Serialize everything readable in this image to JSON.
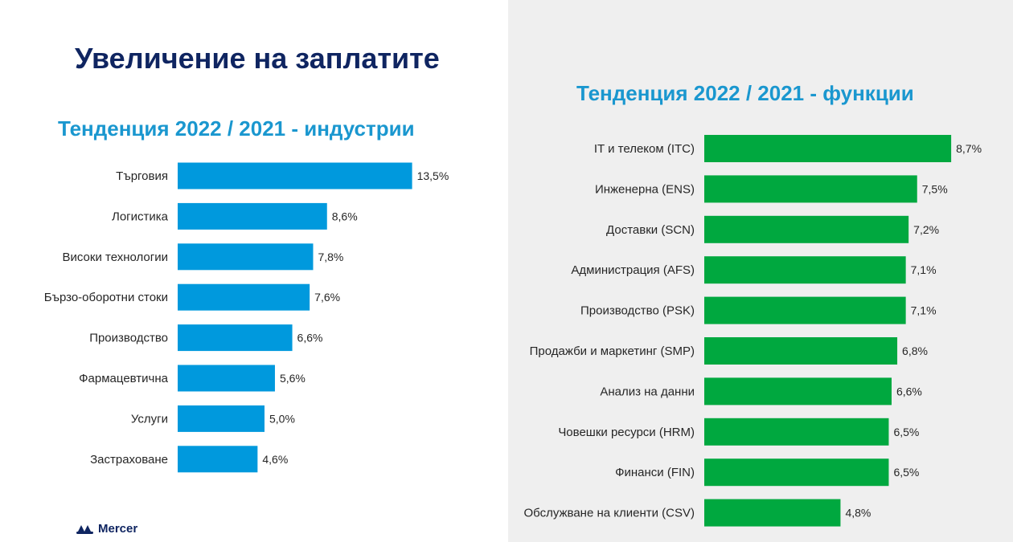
{
  "title": "Увеличение на заплатите",
  "brand": {
    "name": "Mercer",
    "color": "#0f2561"
  },
  "colors": {
    "left_bar": "#0099dd",
    "right_bar": "#00a83f",
    "title": "#0f2561",
    "subtitle": "#1a97cf"
  },
  "chart_data": [
    {
      "type": "bar",
      "orientation": "horizontal",
      "title": "Тенденция 2022 / 2021 - индустрии",
      "categories": [
        "Търговия",
        "Логистика",
        "Високи технологии",
        "Бързо-оборотни стоки",
        "Производство",
        "Фармацевтична",
        "Услуги",
        "Застраховане"
      ],
      "values": [
        13.5,
        8.6,
        7.8,
        7.6,
        6.6,
        5.6,
        5.0,
        4.6
      ],
      "value_labels": [
        "13,5%",
        "8,6%",
        "7,8%",
        "7,6%",
        "6,6%",
        "5,6%",
        "5,0%",
        "4,6%"
      ],
      "xlabel": "",
      "ylabel": "",
      "unit": "%"
    },
    {
      "type": "bar",
      "orientation": "horizontal",
      "title": "Тенденция 2022 / 2021 - функции",
      "categories": [
        "IT и телеком (ITC)",
        "Инженерна (ENS)",
        "Доставки (SCN)",
        "Администрация (AFS)",
        "Производство (PSK)",
        "Продажби и маркетинг (SMP)",
        "Анализ на данни",
        "Човешки ресурси (HRM)",
        "Финанси (FIN)",
        "Обслужване на клиенти (CSV)"
      ],
      "values": [
        8.7,
        7.5,
        7.2,
        7.1,
        7.1,
        6.8,
        6.6,
        6.5,
        6.5,
        4.8
      ],
      "value_labels": [
        "8,7%",
        "7,5%",
        "7,2%",
        "7,1%",
        "7,1%",
        "6,8%",
        "6,6%",
        "6,5%",
        "6,5%",
        "4,8%"
      ],
      "xlabel": "",
      "ylabel": "",
      "unit": "%"
    }
  ]
}
